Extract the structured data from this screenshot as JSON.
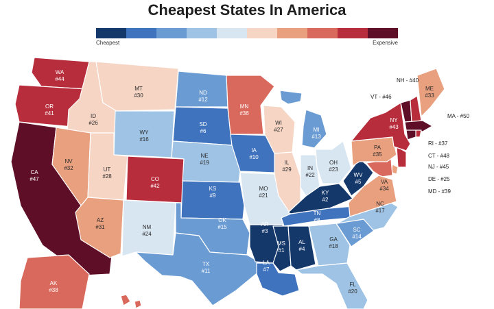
{
  "title": "Cheapest States In America",
  "legend": {
    "min_label": "Cheapest",
    "max_label": "Expensive",
    "colors": [
      "#15386b",
      "#3f73be",
      "#6a9bd3",
      "#9ec3e4",
      "#d8e6f2",
      "#f6d5c4",
      "#e9a07f",
      "#d9695c",
      "#b82d3c",
      "#5e0f27"
    ]
  },
  "states": [
    {
      "id": "WA",
      "label": "WA",
      "rank": "#44",
      "color": "#b82d3c"
    },
    {
      "id": "OR",
      "label": "OR",
      "rank": "#41",
      "color": "#b82d3c"
    },
    {
      "id": "CA",
      "label": "CA",
      "rank": "#47",
      "color": "#5e0f27"
    },
    {
      "id": "ID",
      "label": "ID",
      "rank": "#26",
      "color": "#f6d5c4"
    },
    {
      "id": "NV",
      "label": "NV",
      "rank": "#32",
      "color": "#e9a07f"
    },
    {
      "id": "MT",
      "label": "MT",
      "rank": "#30",
      "color": "#f6d5c4"
    },
    {
      "id": "WY",
      "label": "WY",
      "rank": "#16",
      "color": "#9ec3e4"
    },
    {
      "id": "UT",
      "label": "UT",
      "rank": "#28",
      "color": "#f6d5c4"
    },
    {
      "id": "AZ",
      "label": "AZ",
      "rank": "#31",
      "color": "#e9a07f"
    },
    {
      "id": "CO",
      "label": "CO",
      "rank": "#42",
      "color": "#b82d3c"
    },
    {
      "id": "NM",
      "label": "NM",
      "rank": "#24",
      "color": "#d8e6f2"
    },
    {
      "id": "ND",
      "label": "ND",
      "rank": "#12",
      "color": "#6a9bd3"
    },
    {
      "id": "SD",
      "label": "SD",
      "rank": "#6",
      "color": "#3f73be"
    },
    {
      "id": "NE",
      "label": "NE",
      "rank": "#19",
      "color": "#9ec3e4"
    },
    {
      "id": "KS",
      "label": "KS",
      "rank": "#9",
      "color": "#3f73be"
    },
    {
      "id": "OK",
      "label": "OK",
      "rank": "#15",
      "color": "#6a9bd3"
    },
    {
      "id": "TX",
      "label": "TX",
      "rank": "#11",
      "color": "#6a9bd3"
    },
    {
      "id": "MN",
      "label": "MN",
      "rank": "#36",
      "color": "#d9695c"
    },
    {
      "id": "IA",
      "label": "IA",
      "rank": "#10",
      "color": "#3f73be"
    },
    {
      "id": "MO",
      "label": "MO",
      "rank": "#21",
      "color": "#d8e6f2"
    },
    {
      "id": "AR",
      "label": "AR",
      "rank": "#3",
      "color": "#15386b"
    },
    {
      "id": "LA",
      "label": "LA",
      "rank": "#7",
      "color": "#3f73be"
    },
    {
      "id": "WI",
      "label": "WI",
      "rank": "#27",
      "color": "#f6d5c4"
    },
    {
      "id": "IL",
      "label": "IL",
      "rank": "#29",
      "color": "#f6d5c4"
    },
    {
      "id": "MI",
      "label": "MI",
      "rank": "#13",
      "color": "#6a9bd3"
    },
    {
      "id": "IN",
      "label": "IN",
      "rank": "#22",
      "color": "#d8e6f2"
    },
    {
      "id": "OH",
      "label": "OH",
      "rank": "#23",
      "color": "#d8e6f2"
    },
    {
      "id": "KY",
      "label": "KY",
      "rank": "#2",
      "color": "#15386b"
    },
    {
      "id": "TN",
      "label": "TN",
      "rank": "#8",
      "color": "#3f73be"
    },
    {
      "id": "MS",
      "label": "MS",
      "rank": "#1",
      "color": "#15386b"
    },
    {
      "id": "AL",
      "label": "AL",
      "rank": "#4",
      "color": "#15386b"
    },
    {
      "id": "GA",
      "label": "GA",
      "rank": "#18",
      "color": "#9ec3e4"
    },
    {
      "id": "FL",
      "label": "FL",
      "rank": "#20",
      "color": "#9ec3e4"
    },
    {
      "id": "SC",
      "label": "SC",
      "rank": "#14",
      "color": "#6a9bd3"
    },
    {
      "id": "NC",
      "label": "NC",
      "rank": "#17",
      "color": "#9ec3e4"
    },
    {
      "id": "VA",
      "label": "VA",
      "rank": "#34",
      "color": "#e9a07f"
    },
    {
      "id": "WV",
      "label": "WV",
      "rank": "#5",
      "color": "#15386b"
    },
    {
      "id": "PA",
      "label": "PA",
      "rank": "#35",
      "color": "#e9a07f"
    },
    {
      "id": "NY",
      "label": "NY",
      "rank": "#43",
      "color": "#b82d3c"
    },
    {
      "id": "ME",
      "label": "ME",
      "rank": "#33",
      "color": "#e9a07f"
    },
    {
      "id": "AK",
      "label": "AK",
      "rank": "#38",
      "color": "#d9695c"
    }
  ],
  "unlabeled_states": [
    {
      "id": "VT",
      "color": "#5e0f27"
    },
    {
      "id": "NH",
      "color": "#b82d3c"
    },
    {
      "id": "MA",
      "color": "#5e0f27"
    },
    {
      "id": "RI",
      "color": "#b82d3c"
    },
    {
      "id": "CT",
      "color": "#5e0f27"
    },
    {
      "id": "NJ",
      "color": "#b82d3c"
    },
    {
      "id": "DE",
      "color": "#e9a07f"
    },
    {
      "id": "MD",
      "color": "#d9695c"
    },
    {
      "id": "HI",
      "color": "#d9695c"
    }
  ],
  "callouts": [
    {
      "id": "NH",
      "text": "NH - #40"
    },
    {
      "id": "VT",
      "text": "VT - #46"
    },
    {
      "id": "MA",
      "text": "MA - #50"
    },
    {
      "id": "RI",
      "text": "RI - #37"
    },
    {
      "id": "CT",
      "text": "CT - #48"
    },
    {
      "id": "NJ",
      "text": "NJ - #45"
    },
    {
      "id": "DE",
      "text": "DE - #25"
    },
    {
      "id": "MD",
      "text": "MD - #39"
    }
  ]
}
